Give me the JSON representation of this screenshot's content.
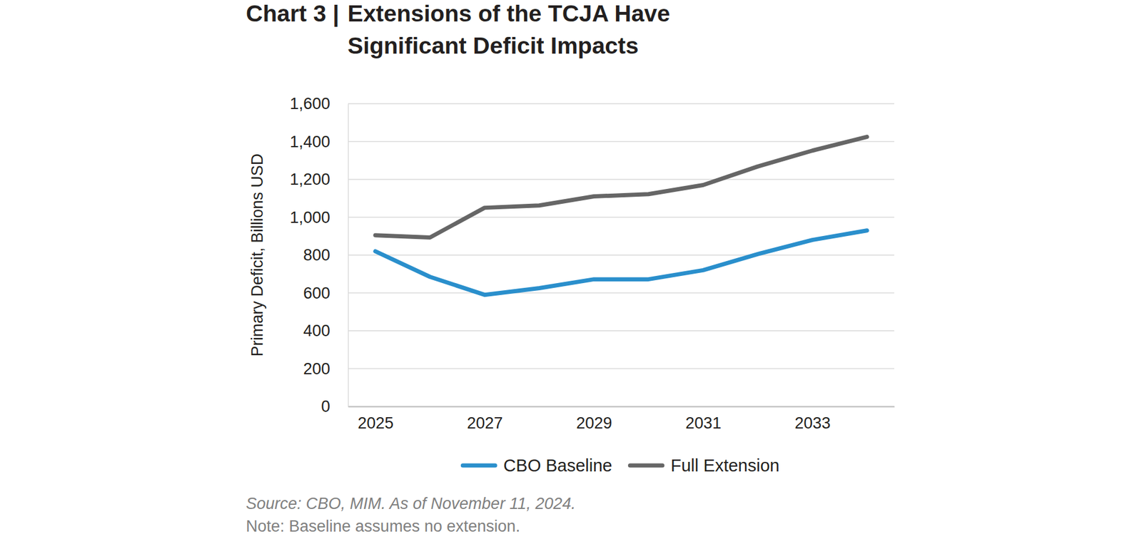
{
  "chart_data": {
    "type": "line",
    "title": "Chart 3 | Extensions of the TCJA Have Significant Deficit Impacts",
    "y_label": "Primary Deficit, Billions USD",
    "source": "Source: CBO, MIM. As of November 11, 2024.",
    "note": "Note: Baseline assumes no extension.",
    "x": [
      2025,
      2026,
      2027,
      2028,
      2029,
      2030,
      2031,
      2032,
      2033,
      2034
    ],
    "xlim": [
      2024.5,
      2034.5
    ],
    "xticks": [
      2025,
      2027,
      2029,
      2031,
      2033
    ],
    "ylim": [
      0,
      1600
    ],
    "yticks": [
      0,
      200,
      400,
      600,
      800,
      {
        "value": 1000,
        "label": "1,000"
      },
      {
        "value": 1200,
        "label": "1,200"
      },
      {
        "value": 1400,
        "label": "1,400"
      },
      {
        "value": 1600,
        "label": "1,600"
      }
    ],
    "grid": true,
    "legend": "bottom",
    "series": [
      {
        "name": "CBO Baseline",
        "color": "#2a8fcc",
        "values": [
          820,
          685,
          590,
          625,
          672,
          672,
          720,
          805,
          880,
          930
        ]
      },
      {
        "name": "Full Extension",
        "color": "#666666",
        "values": [
          905,
          893,
          1050,
          1062,
          1110,
          1122,
          1170,
          1268,
          1352,
          1425
        ]
      }
    ]
  }
}
